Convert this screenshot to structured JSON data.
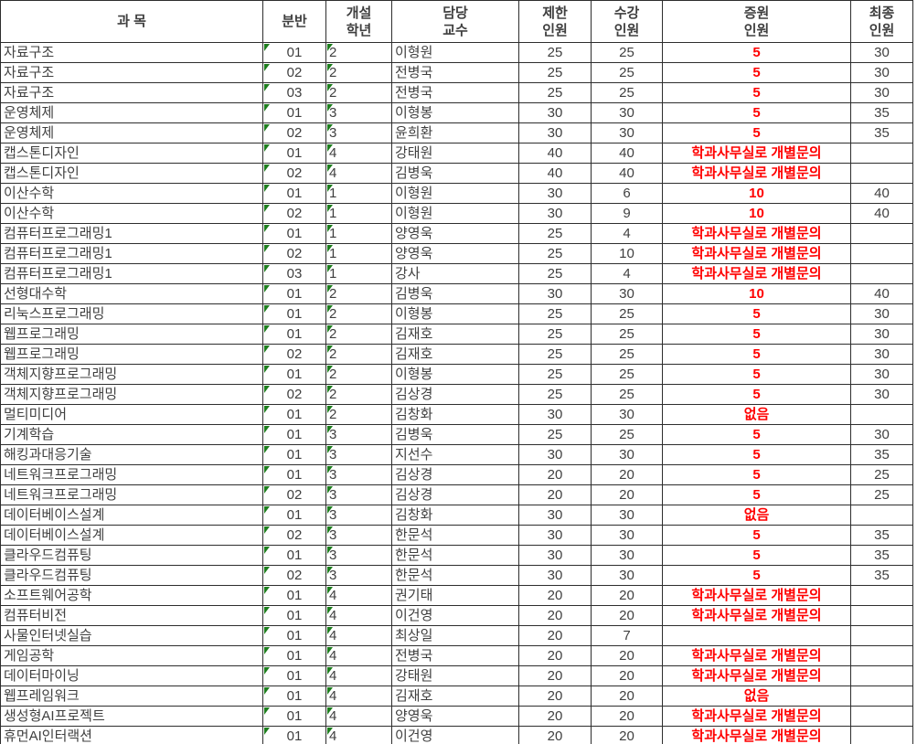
{
  "colors": {
    "text": "#3f3f3f",
    "red_text": "#ff0000",
    "flag_green": "#1e7e1e",
    "border": "#2e2e2e",
    "background": "#ffffff"
  },
  "table": {
    "columns": [
      {
        "key": "subject",
        "label": "과 목",
        "align": "left",
        "flag": false
      },
      {
        "key": "section",
        "label": "분반",
        "align": "center",
        "flag": true
      },
      {
        "key": "year",
        "label": "개설\n학년",
        "align": "left",
        "flag": true
      },
      {
        "key": "professor",
        "label": "담당\n교수",
        "align": "left",
        "flag": false
      },
      {
        "key": "limit",
        "label": "제한\n인원",
        "align": "center",
        "flag": false
      },
      {
        "key": "enrolled",
        "label": "수강\n인원",
        "align": "center",
        "flag": false
      },
      {
        "key": "augment",
        "label": "증원\n인원",
        "align": "center",
        "flag": false,
        "emphasis": "red"
      },
      {
        "key": "final",
        "label": "최종\n인원",
        "align": "center",
        "flag": false
      }
    ],
    "rows": [
      [
        "자료구조",
        "01",
        "2",
        "이형원",
        "25",
        "25",
        "5",
        "30"
      ],
      [
        "자료구조",
        "02",
        "2",
        "전병국",
        "25",
        "25",
        "5",
        "30"
      ],
      [
        "자료구조",
        "03",
        "2",
        "전병국",
        "25",
        "25",
        "5",
        "30"
      ],
      [
        "운영체제",
        "01",
        "3",
        "이형봉",
        "30",
        "30",
        "5",
        "35"
      ],
      [
        "운영체제",
        "02",
        "3",
        "윤희환",
        "30",
        "30",
        "5",
        "35"
      ],
      [
        "캡스톤디자인",
        "01",
        "4",
        "강태원",
        "40",
        "40",
        "학과사무실로 개별문의",
        ""
      ],
      [
        "캡스톤디자인",
        "02",
        "4",
        "김병욱",
        "40",
        "40",
        "학과사무실로 개별문의",
        ""
      ],
      [
        "이산수학",
        "01",
        "1",
        "이형원",
        "30",
        "6",
        "10",
        "40"
      ],
      [
        "이산수학",
        "02",
        "1",
        "이형원",
        "30",
        "9",
        "10",
        "40"
      ],
      [
        "컴퓨터프로그래밍1",
        "01",
        "1",
        "양영욱",
        "25",
        "4",
        "학과사무실로 개별문의",
        ""
      ],
      [
        "컴퓨터프로그래밍1",
        "02",
        "1",
        "양영욱",
        "25",
        "10",
        "학과사무실로 개별문의",
        ""
      ],
      [
        "컴퓨터프로그래밍1",
        "03",
        "1",
        "강사",
        "25",
        "4",
        "학과사무실로 개별문의",
        ""
      ],
      [
        "선형대수학",
        "01",
        "2",
        "김병욱",
        "30",
        "30",
        "10",
        "40"
      ],
      [
        "리눅스프로그래밍",
        "01",
        "2",
        "이형봉",
        "25",
        "25",
        "5",
        "30"
      ],
      [
        "웹프로그래밍",
        "01",
        "2",
        "김재호",
        "25",
        "25",
        "5",
        "30"
      ],
      [
        "웹프로그래밍",
        "02",
        "2",
        "김재호",
        "25",
        "25",
        "5",
        "30"
      ],
      [
        "객체지향프로그래밍",
        "01",
        "2",
        "이형봉",
        "25",
        "25",
        "5",
        "30"
      ],
      [
        "객체지향프로그래밍",
        "02",
        "2",
        "김상경",
        "25",
        "25",
        "5",
        "30"
      ],
      [
        "멀티미디어",
        "01",
        "2",
        "김창화",
        "30",
        "30",
        "없음",
        ""
      ],
      [
        "기계학습",
        "01",
        "3",
        "김병욱",
        "25",
        "25",
        "5",
        "30"
      ],
      [
        "해킹과대응기술",
        "01",
        "3",
        "지선수",
        "30",
        "30",
        "5",
        "35"
      ],
      [
        "네트워크프로그래밍",
        "01",
        "3",
        "김상경",
        "20",
        "20",
        "5",
        "25"
      ],
      [
        "네트워크프로그래밍",
        "02",
        "3",
        "김상경",
        "20",
        "20",
        "5",
        "25"
      ],
      [
        "데이터베이스설계",
        "01",
        "3",
        "김창화",
        "30",
        "30",
        "없음",
        ""
      ],
      [
        "데이터베이스설계",
        "02",
        "3",
        "한문석",
        "30",
        "30",
        "5",
        "35"
      ],
      [
        "클라우드컴퓨팅",
        "01",
        "3",
        "한문석",
        "30",
        "30",
        "5",
        "35"
      ],
      [
        "클라우드컴퓨팅",
        "02",
        "3",
        "한문석",
        "30",
        "30",
        "5",
        "35"
      ],
      [
        "소프트웨어공학",
        "01",
        "4",
        "권기태",
        "20",
        "20",
        "학과사무실로 개별문의",
        ""
      ],
      [
        "컴퓨터비전",
        "01",
        "4",
        "이건영",
        "20",
        "20",
        "학과사무실로 개별문의",
        ""
      ],
      [
        "사물인터넷실습",
        "01",
        "4",
        "최상일",
        "20",
        "7",
        "",
        ""
      ],
      [
        "게임공학",
        "01",
        "4",
        "전병국",
        "20",
        "20",
        "학과사무실로 개별문의",
        ""
      ],
      [
        "데이터마이닝",
        "01",
        "4",
        "강태원",
        "20",
        "20",
        "학과사무실로 개별문의",
        ""
      ],
      [
        "웹프레임워크",
        "01",
        "4",
        "김재호",
        "20",
        "20",
        "없음",
        ""
      ],
      [
        "생성형AI프로젝트",
        "01",
        "4",
        "양영욱",
        "20",
        "20",
        "학과사무실로 개별문의",
        ""
      ],
      [
        "휴먼AI인터랙션",
        "01",
        "4",
        "이건영",
        "20",
        "20",
        "학과사무실로 개별문의",
        ""
      ]
    ]
  }
}
